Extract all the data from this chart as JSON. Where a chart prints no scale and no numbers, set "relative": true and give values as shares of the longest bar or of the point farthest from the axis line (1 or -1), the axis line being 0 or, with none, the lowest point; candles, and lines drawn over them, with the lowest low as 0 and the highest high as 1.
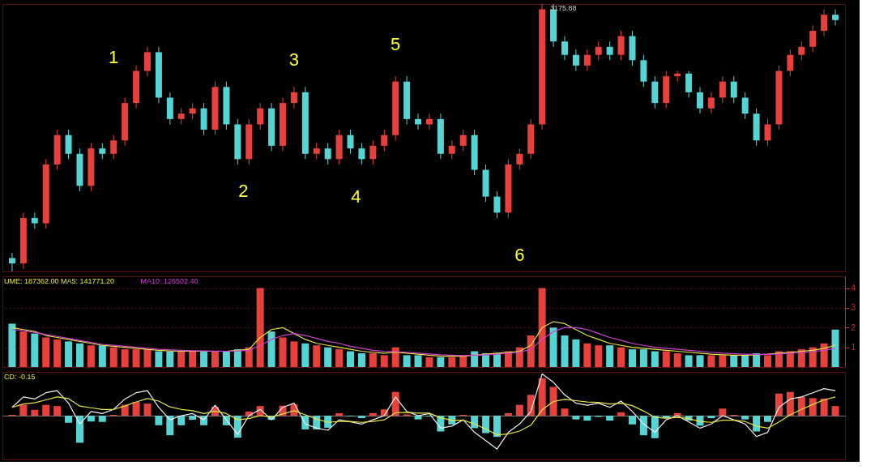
{
  "chart_data": [
    {
      "type": "candlestick",
      "relative": true,
      "tick_labels": false,
      "categories": [
        null,
        null,
        null,
        null,
        null,
        null,
        null,
        null,
        null,
        null,
        null,
        null,
        null,
        null,
        null,
        null,
        null,
        null,
        null,
        null,
        null,
        null,
        null,
        null,
        null,
        null,
        null,
        null,
        null,
        null,
        null,
        null,
        null,
        null,
        null,
        null,
        null,
        null,
        null,
        null,
        null,
        null,
        null,
        null,
        null,
        null,
        null,
        null,
        null,
        null,
        null,
        null,
        null,
        null,
        null,
        null,
        null,
        null,
        null,
        null,
        null,
        null,
        null,
        null,
        null,
        null,
        null,
        null,
        null,
        null,
        null,
        null,
        null,
        null
      ],
      "ohlc": [
        [
          0.05,
          0.07,
          0,
          0.03
        ],
        [
          0.03,
          0.22,
          0.01,
          0.2
        ],
        [
          0.2,
          0.22,
          0.16,
          0.18
        ],
        [
          0.18,
          0.42,
          0.16,
          0.4
        ],
        [
          0.4,
          0.53,
          0.38,
          0.51
        ],
        [
          0.51,
          0.53,
          0.42,
          0.44
        ],
        [
          0.44,
          0.46,
          0.3,
          0.32
        ],
        [
          0.32,
          0.48,
          0.3,
          0.46
        ],
        [
          0.46,
          0.48,
          0.42,
          0.44
        ],
        [
          0.44,
          0.51,
          0.42,
          0.49
        ],
        [
          0.49,
          0.65,
          0.47,
          0.63
        ],
        [
          0.63,
          0.77,
          0.61,
          0.75
        ],
        [
          0.75,
          0.84,
          0.73,
          0.82
        ],
        [
          0.82,
          0.84,
          0.63,
          0.65
        ],
        [
          0.65,
          0.67,
          0.55,
          0.57
        ],
        [
          0.57,
          0.61,
          0.55,
          0.59
        ],
        [
          0.59,
          0.63,
          0.57,
          0.61
        ],
        [
          0.61,
          0.63,
          0.51,
          0.53
        ],
        [
          0.53,
          0.71,
          0.51,
          0.69
        ],
        [
          0.69,
          0.71,
          0.53,
          0.55
        ],
        [
          0.55,
          0.57,
          0.4,
          0.42
        ],
        [
          0.42,
          0.57,
          0.4,
          0.55
        ],
        [
          0.55,
          0.63,
          0.53,
          0.61
        ],
        [
          0.61,
          0.63,
          0.45,
          0.47
        ],
        [
          0.47,
          0.65,
          0.45,
          0.63
        ],
        [
          0.63,
          0.69,
          0.61,
          0.67
        ],
        [
          0.67,
          0.69,
          0.42,
          0.44
        ],
        [
          0.44,
          0.48,
          0.42,
          0.46
        ],
        [
          0.46,
          0.48,
          0.4,
          0.42
        ],
        [
          0.42,
          0.53,
          0.4,
          0.51
        ],
        [
          0.51,
          0.53,
          0.44,
          0.46
        ],
        [
          0.46,
          0.48,
          0.4,
          0.42
        ],
        [
          0.42,
          0.49,
          0.4,
          0.47
        ],
        [
          0.47,
          0.53,
          0.45,
          0.51
        ],
        [
          0.51,
          0.73,
          0.49,
          0.71
        ],
        [
          0.71,
          0.73,
          0.55,
          0.57
        ],
        [
          0.57,
          0.59,
          0.53,
          0.55
        ],
        [
          0.55,
          0.59,
          0.53,
          0.57
        ],
        [
          0.57,
          0.59,
          0.42,
          0.44
        ],
        [
          0.44,
          0.49,
          0.42,
          0.47
        ],
        [
          0.47,
          0.53,
          0.45,
          0.51
        ],
        [
          0.51,
          0.53,
          0.36,
          0.38
        ],
        [
          0.38,
          0.4,
          0.26,
          0.28
        ],
        [
          0.28,
          0.3,
          0.2,
          0.22
        ],
        [
          0.22,
          0.42,
          0.2,
          0.4
        ],
        [
          0.4,
          0.46,
          0.38,
          0.44
        ],
        [
          0.44,
          0.57,
          0.42,
          0.55
        ],
        [
          0.55,
          1.0,
          0.53,
          0.98
        ],
        [
          0.98,
          1.0,
          0.84,
          0.86
        ],
        [
          0.86,
          0.88,
          0.79,
          0.81
        ],
        [
          0.81,
          0.83,
          0.75,
          0.77
        ],
        [
          0.77,
          0.83,
          0.75,
          0.81
        ],
        [
          0.81,
          0.86,
          0.79,
          0.84
        ],
        [
          0.84,
          0.86,
          0.79,
          0.81
        ],
        [
          0.81,
          0.9,
          0.79,
          0.88
        ],
        [
          0.88,
          0.9,
          0.77,
          0.79
        ],
        [
          0.79,
          0.81,
          0.69,
          0.71
        ],
        [
          0.71,
          0.73,
          0.61,
          0.63
        ],
        [
          0.63,
          0.75,
          0.61,
          0.73
        ],
        [
          0.73,
          0.75,
          0.71,
          0.74
        ],
        [
          0.74,
          0.75,
          0.65,
          0.67
        ],
        [
          0.67,
          0.69,
          0.59,
          0.61
        ],
        [
          0.61,
          0.67,
          0.59,
          0.65
        ],
        [
          0.65,
          0.73,
          0.63,
          0.71
        ],
        [
          0.71,
          0.73,
          0.63,
          0.65
        ],
        [
          0.65,
          0.67,
          0.57,
          0.59
        ],
        [
          0.59,
          0.61,
          0.47,
          0.49
        ],
        [
          0.49,
          0.57,
          0.47,
          0.55
        ],
        [
          0.55,
          0.77,
          0.53,
          0.75
        ],
        [
          0.75,
          0.83,
          0.73,
          0.81
        ],
        [
          0.81,
          0.86,
          0.79,
          0.84
        ],
        [
          0.84,
          0.92,
          0.82,
          0.9
        ],
        [
          0.9,
          0.98,
          0.88,
          0.96
        ],
        [
          0.96,
          0.98,
          0.92,
          0.94
        ]
      ],
      "colors": [
        "#56d4d4",
        "#e8413c",
        "#56d4d4",
        "#e8413c",
        "#e8413c",
        "#56d4d4",
        "#56d4d4",
        "#e8413c",
        "#56d4d4",
        "#e8413c",
        "#e8413c",
        "#e8413c",
        "#e8413c",
        "#56d4d4",
        "#56d4d4",
        "#e8413c",
        "#e8413c",
        "#56d4d4",
        "#e8413c",
        "#56d4d4",
        "#56d4d4",
        "#e8413c",
        "#e8413c",
        "#56d4d4",
        "#e8413c",
        "#e8413c",
        "#56d4d4",
        "#e8413c",
        "#56d4d4",
        "#e8413c",
        "#56d4d4",
        "#56d4d4",
        "#e8413c",
        "#e8413c",
        "#e8413c",
        "#56d4d4",
        "#56d4d4",
        "#e8413c",
        "#56d4d4",
        "#e8413c",
        "#e8413c",
        "#56d4d4",
        "#56d4d4",
        "#56d4d4",
        "#e8413c",
        "#e8413c",
        "#e8413c",
        "#e8413c",
        "#56d4d4",
        "#56d4d4",
        "#56d4d4",
        "#e8413c",
        "#e8413c",
        "#56d4d4",
        "#e8413c",
        "#56d4d4",
        "#56d4d4",
        "#56d4d4",
        "#e8413c",
        "#e8413c",
        "#56d4d4",
        "#56d4d4",
        "#e8413c",
        "#e8413c",
        "#56d4d4",
        "#56d4d4",
        "#56d4d4",
        "#e8413c",
        "#e8413c",
        "#e8413c",
        "#e8413c",
        "#e8413c",
        "#e8413c",
        "#56d4d4"
      ],
      "annotations": [
        "1",
        "2",
        "3",
        "4",
        "5",
        "6",
        "3175.88"
      ]
    },
    {
      "type": "bar",
      "tick_labels": "y",
      "grid": "y",
      "ylim": [
        0,
        4.6
      ],
      "yticks": [
        1,
        2,
        3,
        4
      ],
      "categories": [
        null,
        null,
        null,
        null,
        null,
        null,
        null,
        null,
        null,
        null,
        null,
        null,
        null,
        null,
        null,
        null,
        null,
        null,
        null,
        null,
        null,
        null,
        null,
        null,
        null,
        null,
        null,
        null,
        null,
        null,
        null,
        null,
        null,
        null,
        null,
        null,
        null,
        null,
        null,
        null,
        null,
        null,
        null,
        null,
        null,
        null,
        null,
        null,
        null,
        null,
        null,
        null,
        null,
        null,
        null,
        null,
        null,
        null,
        null,
        null,
        null,
        null,
        null,
        null,
        null,
        null,
        null,
        null,
        null,
        null,
        null,
        null,
        null,
        null
      ],
      "values": [
        2.2,
        1.8,
        1.7,
        1.5,
        1.4,
        1.3,
        1.2,
        1.1,
        1.1,
        1.0,
        0.9,
        0.9,
        0.9,
        0.8,
        0.8,
        0.8,
        0.8,
        0.8,
        0.8,
        0.8,
        0.9,
        1.0,
        4.0,
        1.8,
        1.5,
        1.3,
        1.2,
        1.1,
        1.0,
        0.9,
        0.8,
        0.7,
        0.7,
        0.6,
        1.0,
        0.6,
        0.6,
        0.5,
        0.5,
        0.5,
        0.6,
        0.8,
        0.7,
        0.7,
        0.8,
        1.0,
        1.6,
        4.0,
        2.0,
        1.6,
        1.4,
        1.2,
        1.1,
        1.1,
        1.0,
        0.9,
        0.9,
        0.8,
        0.8,
        0.7,
        0.6,
        0.6,
        0.6,
        0.6,
        0.6,
        0.6,
        0.7,
        0.6,
        0.8,
        0.8,
        0.9,
        1.0,
        1.2,
        1.9
      ],
      "colors": [
        "#56d4d4",
        "#e8413c",
        "#56d4d4",
        "#e8413c",
        "#e8413c",
        "#56d4d4",
        "#56d4d4",
        "#e8413c",
        "#56d4d4",
        "#e8413c",
        "#e8413c",
        "#e8413c",
        "#e8413c",
        "#56d4d4",
        "#56d4d4",
        "#e8413c",
        "#e8413c",
        "#56d4d4",
        "#e8413c",
        "#56d4d4",
        "#56d4d4",
        "#e8413c",
        "#e8413c",
        "#56d4d4",
        "#e8413c",
        "#e8413c",
        "#56d4d4",
        "#e8413c",
        "#56d4d4",
        "#e8413c",
        "#56d4d4",
        "#56d4d4",
        "#e8413c",
        "#e8413c",
        "#e8413c",
        "#56d4d4",
        "#56d4d4",
        "#e8413c",
        "#56d4d4",
        "#e8413c",
        "#e8413c",
        "#56d4d4",
        "#56d4d4",
        "#56d4d4",
        "#e8413c",
        "#e8413c",
        "#e8413c",
        "#e8413c",
        "#56d4d4",
        "#56d4d4",
        "#56d4d4",
        "#e8413c",
        "#e8413c",
        "#56d4d4",
        "#e8413c",
        "#56d4d4",
        "#56d4d4",
        "#56d4d4",
        "#e8413c",
        "#e8413c",
        "#56d4d4",
        "#56d4d4",
        "#e8413c",
        "#e8413c",
        "#56d4d4",
        "#56d4d4",
        "#56d4d4",
        "#e8413c",
        "#e8413c",
        "#e8413c",
        "#e8413c",
        "#e8413c",
        "#e8413c",
        "#56d4d4"
      ],
      "series": [
        {
          "type": "line",
          "color": "#e6e640",
          "values": [
            2.0,
            1.9,
            1.8,
            1.6,
            1.5,
            1.4,
            1.3,
            1.2,
            1.1,
            1.05,
            1.0,
            0.95,
            0.9,
            0.85,
            0.82,
            0.8,
            0.8,
            0.8,
            0.8,
            0.8,
            0.85,
            0.9,
            1.5,
            1.9,
            2.0,
            1.7,
            1.4,
            1.2,
            1.1,
            1.0,
            0.9,
            0.8,
            0.75,
            0.7,
            0.75,
            0.7,
            0.65,
            0.6,
            0.55,
            0.55,
            0.55,
            0.6,
            0.65,
            0.7,
            0.75,
            0.8,
            1.1,
            2.0,
            2.3,
            2.2,
            1.9,
            1.6,
            1.4,
            1.2,
            1.1,
            1.0,
            0.95,
            0.9,
            0.85,
            0.8,
            0.75,
            0.7,
            0.65,
            0.62,
            0.6,
            0.6,
            0.62,
            0.65,
            0.7,
            0.75,
            0.8,
            0.85,
            0.95,
            1.1
          ]
        },
        {
          "type": "line",
          "color": "#d040d0",
          "values": [
            1.9,
            1.85,
            1.75,
            1.65,
            1.55,
            1.45,
            1.35,
            1.25,
            1.15,
            1.1,
            1.05,
            1.0,
            0.95,
            0.9,
            0.87,
            0.85,
            0.83,
            0.82,
            0.81,
            0.8,
            0.82,
            0.85,
            1.1,
            1.4,
            1.6,
            1.7,
            1.6,
            1.45,
            1.3,
            1.2,
            1.05,
            0.95,
            0.85,
            0.8,
            0.78,
            0.75,
            0.7,
            0.66,
            0.62,
            0.6,
            0.58,
            0.6,
            0.62,
            0.65,
            0.7,
            0.75,
            0.9,
            1.4,
            1.8,
            2.0,
            2.0,
            1.9,
            1.7,
            1.5,
            1.35,
            1.2,
            1.1,
            1.0,
            0.95,
            0.9,
            0.85,
            0.8,
            0.75,
            0.7,
            0.67,
            0.65,
            0.64,
            0.64,
            0.66,
            0.7,
            0.74,
            0.78,
            0.85,
            0.95
          ]
        }
      ],
      "annotations": [
        "UME: 187362.00 MA5: 141771.20",
        "MA10: 126502.40"
      ]
    },
    {
      "type": "bar",
      "relative": true,
      "tick_labels": false,
      "categories": [
        null,
        null,
        null,
        null,
        null,
        null,
        null,
        null,
        null,
        null,
        null,
        null,
        null,
        null,
        null,
        null,
        null,
        null,
        null,
        null,
        null,
        null,
        null,
        null,
        null,
        null,
        null,
        null,
        null,
        null,
        null,
        null,
        null,
        null,
        null,
        null,
        null,
        null,
        null,
        null,
        null,
        null,
        null,
        null,
        null,
        null,
        null,
        null,
        null,
        null,
        null,
        null,
        null,
        null,
        null,
        null,
        null,
        null,
        null,
        null,
        null,
        null,
        null,
        null,
        null,
        null,
        null,
        null,
        null,
        null,
        null,
        null,
        null,
        null
      ],
      "values": [
        0.02,
        0.26,
        0.14,
        0.26,
        0.23,
        -0.17,
        -0.65,
        -0.14,
        -0.15,
        0.02,
        0.26,
        0.33,
        0.29,
        -0.23,
        -0.47,
        -0.23,
        -0.1,
        -0.23,
        0.21,
        -0.23,
        -0.53,
        0.1,
        0.23,
        -0.1,
        0.24,
        0.27,
        -0.33,
        -0.33,
        -0.29,
        0.06,
        -0.02,
        -0.06,
        0.06,
        0.15,
        0.57,
        0.03,
        -0.09,
        -0.02,
        -0.38,
        -0.21,
        0.02,
        -0.3,
        -0.42,
        -0.51,
        0.06,
        0.26,
        0.5,
        0.9,
        0.69,
        0.17,
        -0.09,
        -0.12,
        -0.03,
        -0.12,
        0.08,
        -0.21,
        -0.47,
        -0.54,
        -0.06,
        0.06,
        -0.12,
        -0.24,
        -0.06,
        0.17,
        0.02,
        -0.09,
        -0.38,
        -0.15,
        0.53,
        0.57,
        0.45,
        0.42,
        0.41,
        0.23
      ],
      "colors": [
        "#e8413c",
        "#e8413c",
        "#e8413c",
        "#e8413c",
        "#e8413c",
        "#56d4d4",
        "#56d4d4",
        "#56d4d4",
        "#56d4d4",
        "#e8413c",
        "#e8413c",
        "#e8413c",
        "#e8413c",
        "#56d4d4",
        "#56d4d4",
        "#56d4d4",
        "#56d4d4",
        "#56d4d4",
        "#e8413c",
        "#56d4d4",
        "#56d4d4",
        "#e8413c",
        "#e8413c",
        "#56d4d4",
        "#e8413c",
        "#e8413c",
        "#56d4d4",
        "#56d4d4",
        "#56d4d4",
        "#e8413c",
        "#56d4d4",
        "#56d4d4",
        "#e8413c",
        "#e8413c",
        "#e8413c",
        "#e8413c",
        "#56d4d4",
        "#56d4d4",
        "#56d4d4",
        "#56d4d4",
        "#e8413c",
        "#56d4d4",
        "#56d4d4",
        "#56d4d4",
        "#e8413c",
        "#e8413c",
        "#e8413c",
        "#e8413c",
        "#e8413c",
        "#e8413c",
        "#56d4d4",
        "#56d4d4",
        "#56d4d4",
        "#56d4d4",
        "#e8413c",
        "#56d4d4",
        "#56d4d4",
        "#56d4d4",
        "#56d4d4",
        "#e8413c",
        "#56d4d4",
        "#56d4d4",
        "#56d4d4",
        "#e8413c",
        "#e8413c",
        "#56d4d4",
        "#56d4d4",
        "#56d4d4",
        "#e8413c",
        "#e8413c",
        "#e8413c",
        "#e8413c",
        "#e8413c",
        "#e8413c"
      ],
      "series": [
        {
          "type": "line",
          "color": "#f0f0f0",
          "values": [
            0.2,
            0.45,
            0.4,
            0.55,
            0.6,
            0.3,
            -0.2,
            0.1,
            0.05,
            0.15,
            0.4,
            0.55,
            0.6,
            0.2,
            -0.1,
            0,
            0.05,
            -0.1,
            0.25,
            -0.1,
            -0.45,
            0,
            0.15,
            -0.1,
            0.2,
            0.3,
            -0.2,
            -0.3,
            -0.35,
            -0.1,
            -0.15,
            -0.2,
            -0.1,
            0,
            0.45,
            0.1,
            0,
            0.05,
            -0.3,
            -0.25,
            -0.1,
            -0.4,
            -0.6,
            -0.8,
            -0.4,
            -0.2,
            0.1,
            1.0,
            0.8,
            0.5,
            0.3,
            0.25,
            0.3,
            0.2,
            0.35,
            0.1,
            -0.2,
            -0.4,
            -0.1,
            0,
            -0.15,
            -0.3,
            -0.2,
            0,
            -0.1,
            -0.2,
            -0.5,
            -0.4,
            0.2,
            0.4,
            0.45,
            0.55,
            0.65,
            0.6
          ]
        },
        {
          "type": "line",
          "color": "#e6e640",
          "values": [
            0.2,
            0.28,
            0.31,
            0.38,
            0.45,
            0.41,
            0.23,
            0.19,
            0.15,
            0.15,
            0.23,
            0.33,
            0.41,
            0.35,
            0.21,
            0.15,
            0.12,
            0.05,
            0.11,
            0.05,
            -0.1,
            -0.07,
            0,
            -0.03,
            0.04,
            0.12,
            0.02,
            -0.08,
            -0.16,
            -0.14,
            -0.14,
            -0.16,
            -0.14,
            -0.1,
            0.07,
            0.08,
            0.06,
            0.06,
            -0.05,
            -0.11,
            -0.11,
            -0.2,
            -0.32,
            -0.46,
            -0.44,
            -0.37,
            -0.23,
            0.14,
            0.34,
            0.39,
            0.36,
            0.33,
            0.32,
            0.28,
            0.3,
            0.24,
            0.11,
            -0.04,
            -0.06,
            -0.04,
            -0.07,
            -0.14,
            -0.16,
            -0.11,
            -0.11,
            -0.14,
            -0.25,
            -0.3,
            -0.15,
            0.02,
            0.15,
            0.27,
            0.38,
            0.45
          ]
        }
      ],
      "annotations": [
        "CD: -0.15"
      ]
    }
  ]
}
